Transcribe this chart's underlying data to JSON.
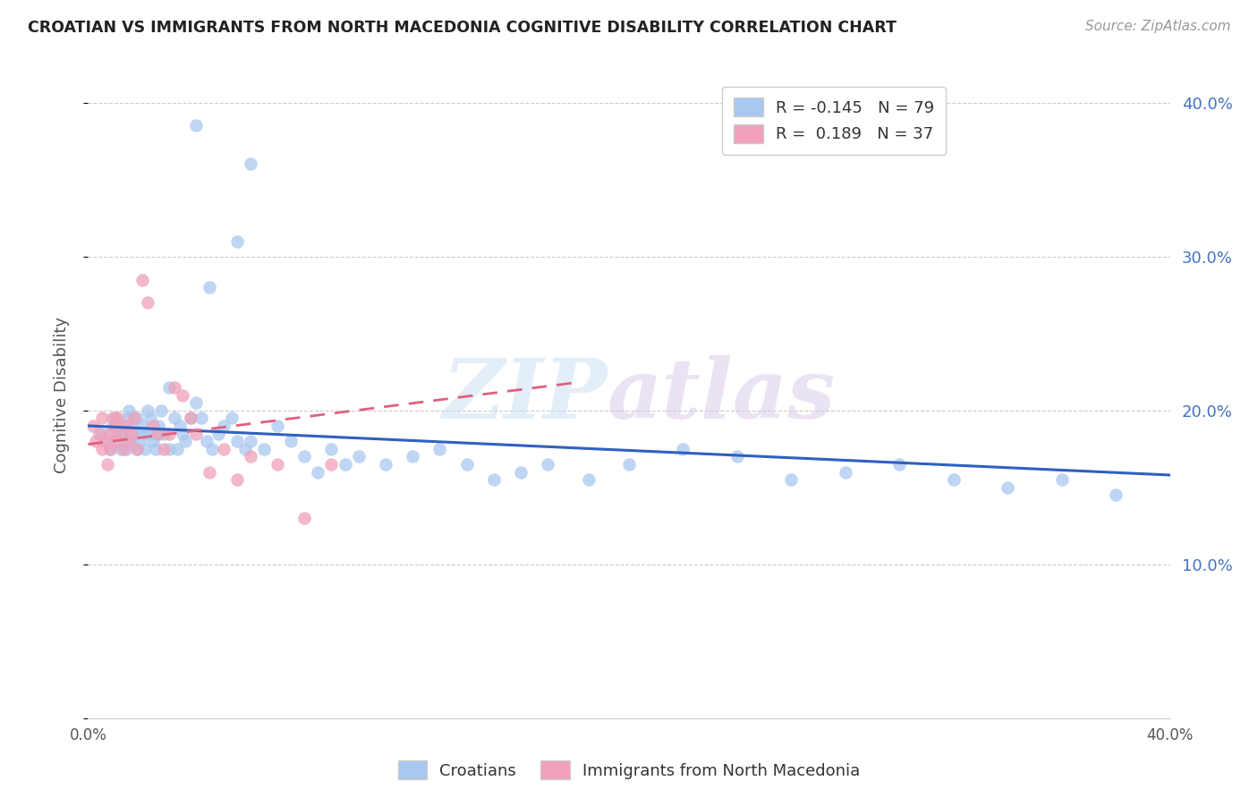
{
  "title": "CROATIAN VS IMMIGRANTS FROM NORTH MACEDONIA COGNITIVE DISABILITY CORRELATION CHART",
  "source": "Source: ZipAtlas.com",
  "ylabel": "Cognitive Disability",
  "ytick_labels": [
    "",
    "10.0%",
    "20.0%",
    "30.0%",
    "40.0%"
  ],
  "ytick_values": [
    0.0,
    0.1,
    0.2,
    0.3,
    0.4
  ],
  "xlim": [
    0.0,
    0.4
  ],
  "ylim": [
    0.0,
    0.42
  ],
  "legend_r1": "R = -0.145",
  "legend_n1": "N = 79",
  "legend_r2": "R =  0.189",
  "legend_n2": "N = 37",
  "color_blue": "#A8C8F0",
  "color_pink": "#F0A0B8",
  "color_blue_line": "#3060C0",
  "color_pink_line": "#E06080",
  "watermark_left": "ZIP",
  "watermark_right": "atlas",
  "blue_scatter_x": [
    0.005,
    0.007,
    0.008,
    0.009,
    0.01,
    0.01,
    0.011,
    0.012,
    0.012,
    0.013,
    0.014,
    0.015,
    0.015,
    0.016,
    0.016,
    0.017,
    0.018,
    0.018,
    0.019,
    0.02,
    0.02,
    0.021,
    0.022,
    0.022,
    0.023,
    0.024,
    0.025,
    0.025,
    0.026,
    0.027,
    0.028,
    0.03,
    0.03,
    0.032,
    0.033,
    0.034,
    0.035,
    0.036,
    0.038,
    0.04,
    0.042,
    0.044,
    0.046,
    0.048,
    0.05,
    0.053,
    0.055,
    0.058,
    0.06,
    0.065,
    0.07,
    0.075,
    0.08,
    0.085,
    0.09,
    0.095,
    0.1,
    0.11,
    0.12,
    0.13,
    0.14,
    0.15,
    0.16,
    0.17,
    0.185,
    0.2,
    0.22,
    0.24,
    0.26,
    0.28,
    0.3,
    0.32,
    0.34,
    0.36,
    0.38,
    0.04,
    0.06,
    0.055,
    0.045
  ],
  "blue_scatter_y": [
    0.185,
    0.18,
    0.175,
    0.19,
    0.185,
    0.195,
    0.18,
    0.175,
    0.19,
    0.185,
    0.175,
    0.195,
    0.2,
    0.18,
    0.19,
    0.185,
    0.175,
    0.195,
    0.18,
    0.185,
    0.19,
    0.175,
    0.2,
    0.185,
    0.195,
    0.18,
    0.185,
    0.175,
    0.19,
    0.2,
    0.185,
    0.175,
    0.215,
    0.195,
    0.175,
    0.19,
    0.185,
    0.18,
    0.195,
    0.205,
    0.195,
    0.18,
    0.175,
    0.185,
    0.19,
    0.195,
    0.18,
    0.175,
    0.18,
    0.175,
    0.19,
    0.18,
    0.17,
    0.16,
    0.175,
    0.165,
    0.17,
    0.165,
    0.17,
    0.175,
    0.165,
    0.155,
    0.16,
    0.165,
    0.155,
    0.165,
    0.175,
    0.17,
    0.155,
    0.16,
    0.165,
    0.155,
    0.15,
    0.155,
    0.145,
    0.385,
    0.36,
    0.31,
    0.28
  ],
  "pink_scatter_x": [
    0.002,
    0.003,
    0.004,
    0.005,
    0.005,
    0.006,
    0.007,
    0.008,
    0.008,
    0.009,
    0.01,
    0.01,
    0.011,
    0.012,
    0.013,
    0.014,
    0.015,
    0.016,
    0.017,
    0.018,
    0.02,
    0.022,
    0.024,
    0.026,
    0.028,
    0.03,
    0.032,
    0.035,
    0.038,
    0.04,
    0.045,
    0.05,
    0.055,
    0.06,
    0.07,
    0.08,
    0.09
  ],
  "pink_scatter_y": [
    0.19,
    0.18,
    0.185,
    0.195,
    0.175,
    0.18,
    0.165,
    0.185,
    0.175,
    0.195,
    0.19,
    0.18,
    0.195,
    0.185,
    0.175,
    0.19,
    0.18,
    0.185,
    0.195,
    0.175,
    0.285,
    0.27,
    0.19,
    0.185,
    0.175,
    0.185,
    0.215,
    0.21,
    0.195,
    0.185,
    0.16,
    0.175,
    0.155,
    0.17,
    0.165,
    0.13,
    0.165
  ],
  "blue_line_x": [
    0.0,
    0.4
  ],
  "blue_line_y": [
    0.19,
    0.158
  ],
  "pink_line_x": [
    0.0,
    0.18
  ],
  "pink_line_y": [
    0.178,
    0.218
  ]
}
